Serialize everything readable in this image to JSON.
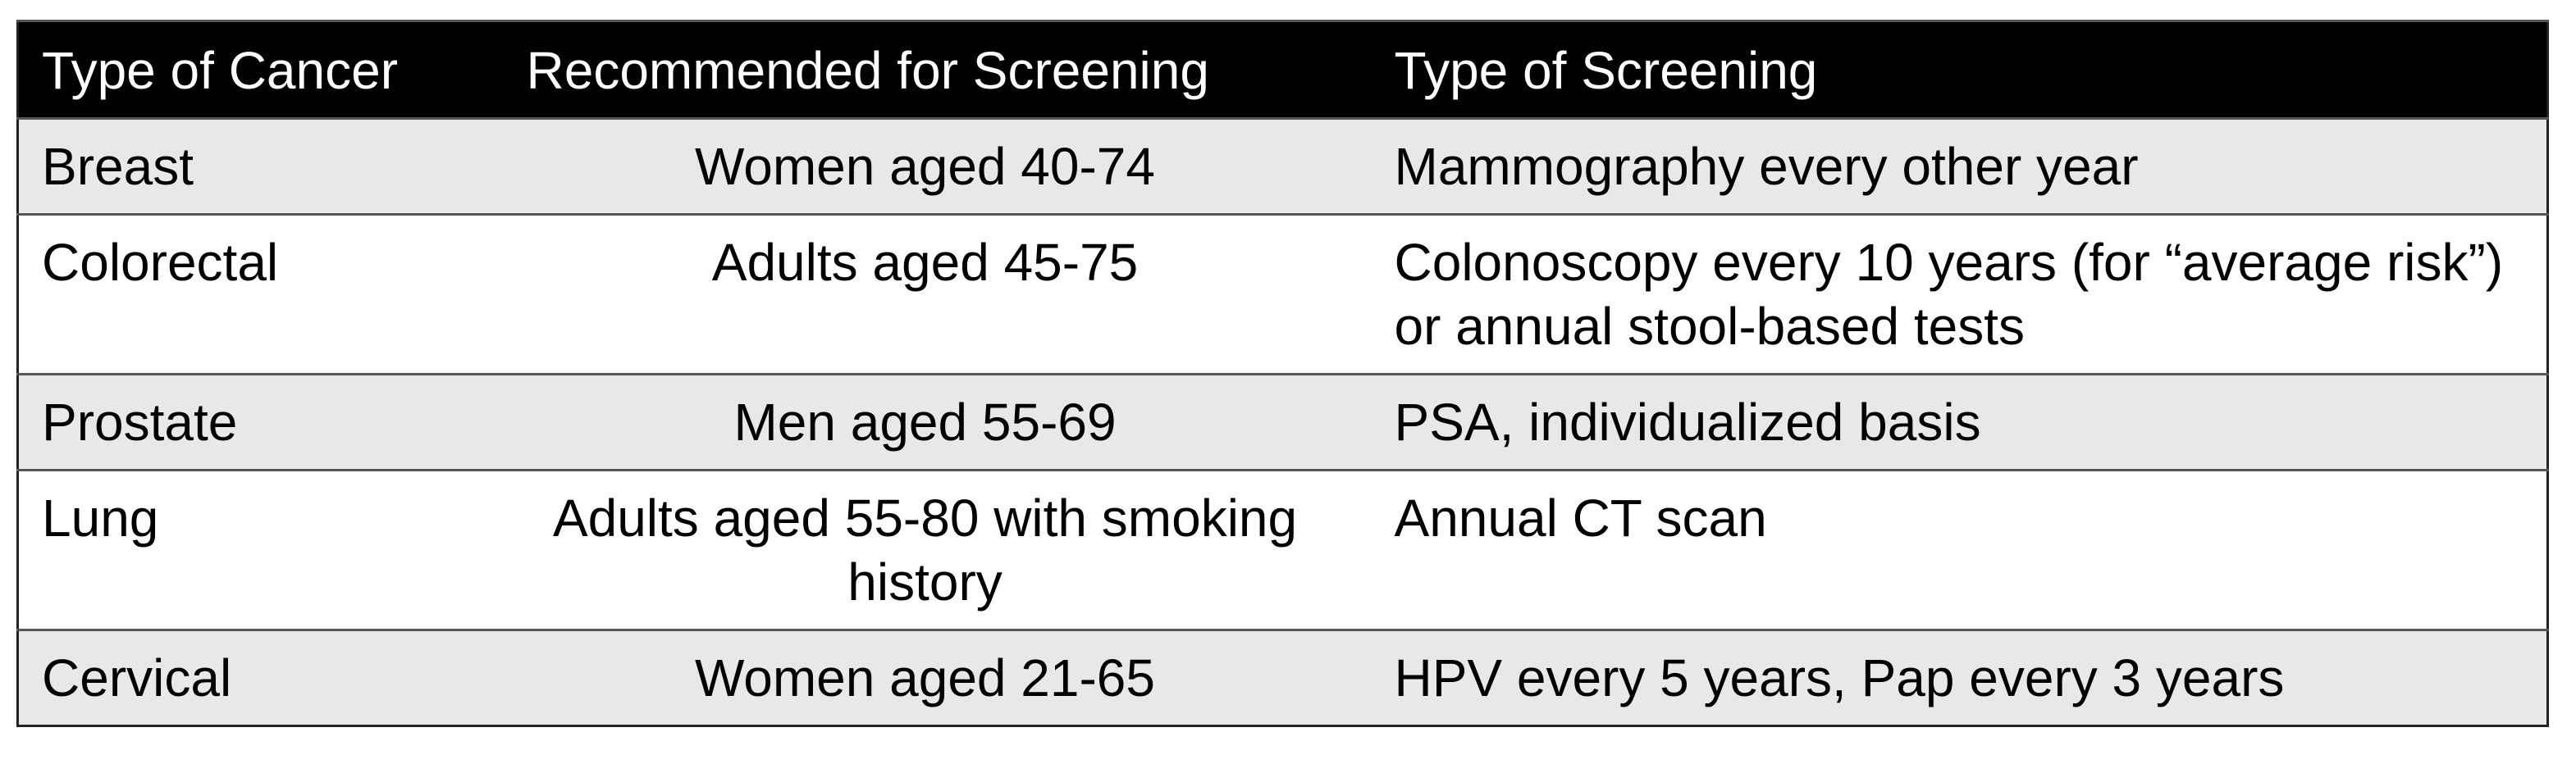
{
  "table": {
    "header": [
      "Type of Cancer",
      "Recommended for Screening",
      "Type of Screening"
    ],
    "rows": [
      [
        "Breast",
        "Women aged 40-74",
        "Mammography every other year"
      ],
      [
        "Colorectal",
        "Adults aged 45-75",
        "Colonoscopy every 10 years (for “average risk”) or annual stool-based tests"
      ],
      [
        "Prostate",
        "Men aged 55-69",
        "PSA, individualized basis"
      ],
      [
        "Lung",
        "Adults aged 55-80 with smoking history",
        "Annual CT scan"
      ],
      [
        "Cervical",
        "Women aged 21-65",
        "HPV every 5 years, Pap every 3 years"
      ]
    ]
  }
}
